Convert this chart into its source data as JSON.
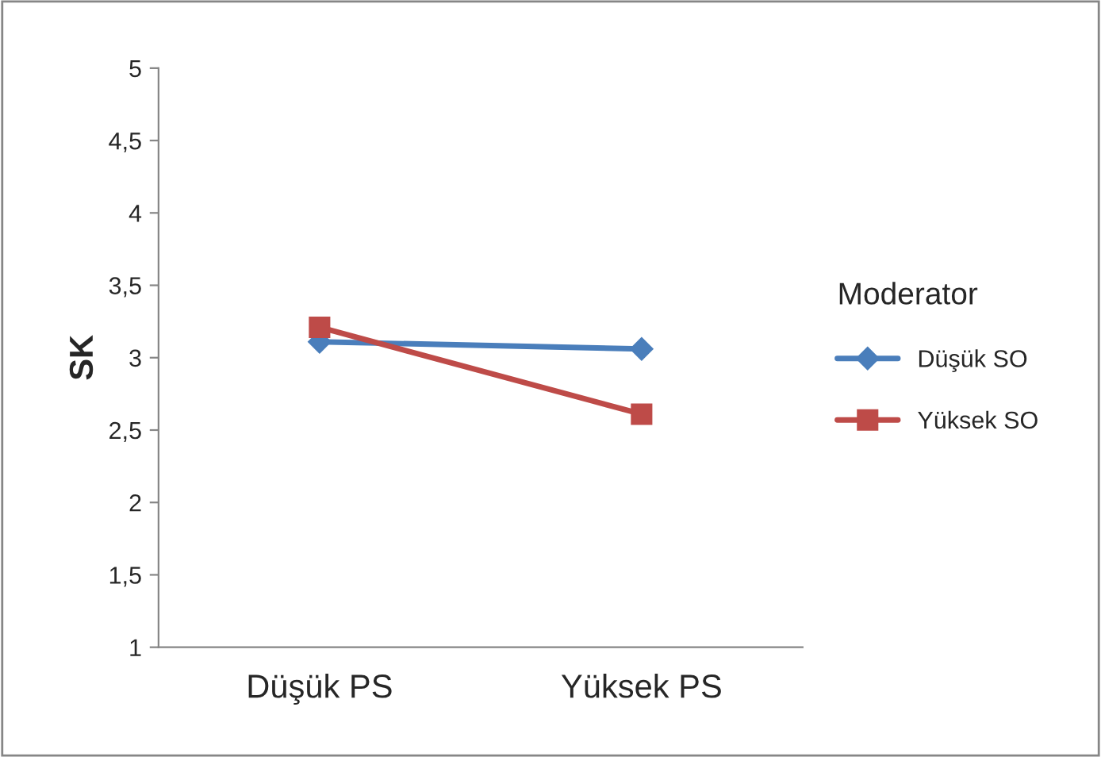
{
  "chart_data": {
    "type": "line",
    "ylabel": "SK",
    "legend_title": "Moderator",
    "legend": "right",
    "categories": [
      "Düşük PS",
      "Yüksek PS"
    ],
    "series": [
      {
        "name": "Düşük SO",
        "color": "#4a7ebb",
        "marker": "diamond",
        "values": [
          3.11,
          3.06
        ]
      },
      {
        "name": "Yüksek SO",
        "color": "#be4b48",
        "marker": "square",
        "values": [
          3.21,
          2.61
        ]
      }
    ],
    "ylim": [
      1,
      5
    ],
    "yticks": [
      1,
      {
        "value": 1.5,
        "label": "1,5"
      },
      2,
      {
        "value": 2.5,
        "label": "2,5"
      },
      3,
      {
        "value": 3.5,
        "label": "3,5"
      },
      4,
      {
        "value": 4.5,
        "label": "4,5"
      },
      5
    ],
    "grid": false,
    "line_style": "solid"
  }
}
